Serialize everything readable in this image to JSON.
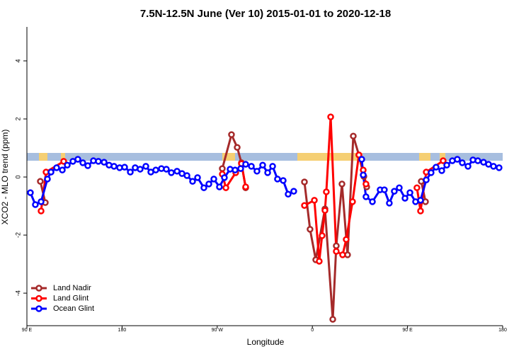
{
  "chart_data": {
    "type": "line",
    "title": "7.5N-12.5N June (Ver 10)   2015-01-01 to 2020-12-18",
    "x_label": "Longitude",
    "y_label": "XCO2 - MLO trend (ppm)",
    "xlim": [
      90,
      540
    ],
    "ylim": [
      -5.12,
      5.17
    ],
    "xticks": [
      {
        "value": 90,
        "label": "90 E"
      },
      180,
      {
        "value": 270,
        "label": "90 W"
      },
      {
        "value": 360,
        "label": "0"
      },
      {
        "value": 450,
        "label": "90 E"
      },
      {
        "value": 540,
        "label": "180"
      }
    ],
    "yticks": [
      -4,
      -2,
      0,
      2,
      4
    ],
    "legend": "bottom-left",
    "series": [
      {
        "name": "Land Nadir",
        "color": "#a52a2a",
        "x": [
          102.7,
          107.4,
          null,
          274.8,
          283.5,
          288.9,
          292.9,
          296.9,
          null,
          352.5,
          357.8,
          363.2,
          371.9,
          379.3,
          382.6,
          388.0,
          393.3,
          398.7,
          404.0,
          408.7,
          411.4,
          null,
          463.0,
          467.0
        ],
        "values": [
          -0.15,
          -0.88,
          null,
          0.29,
          1.46,
          1.02,
          0.49,
          -0.37,
          null,
          -0.17,
          -1.8,
          -2.85,
          -1.1,
          -4.9,
          -2.37,
          -0.24,
          -2.68,
          1.41,
          0.76,
          0.02,
          -0.34,
          null,
          -0.15,
          -0.85
        ]
      },
      {
        "name": "Land Glint",
        "color": "#ff0000",
        "x": [
          103.4,
          108.1,
          124.8,
          null,
          274.8,
          278.2,
          287.5,
          292.9,
          296.9,
          null,
          352.5,
          361.9,
          366.5,
          369.2,
          371.9,
          373.2,
          377.3,
          382.6,
          388.6,
          392.0,
          398.0,
          404.0,
          408.1,
          410.7,
          null,
          458.9,
          462.3,
          467.7,
          483.7
        ],
        "values": [
          -1.17,
          0.17,
          0.54,
          null,
          0.1,
          -0.37,
          0.15,
          0.46,
          -0.34,
          null,
          -0.98,
          -0.8,
          -2.9,
          -2.02,
          -1.15,
          -0.51,
          2.07,
          -2.56,
          -2.68,
          -2.15,
          -0.85,
          0.76,
          0.24,
          -0.24,
          null,
          -0.37,
          -1.17,
          0.17,
          0.56
        ]
      },
      {
        "name": "Ocean Glint",
        "color": "#0000ff",
        "x": [
          93.3,
          98.0,
          103.4,
          109.4,
          112.8,
          118.1,
          123.5,
          128.2,
          133.5,
          138.2,
          142.9,
          147.6,
          152.9,
          157.6,
          163.0,
          167.7,
          172.4,
          177.7,
          182.4,
          187.8,
          192.4,
          197.1,
          202.5,
          207.2,
          211.9,
          217.2,
          221.9,
          226.6,
          232.0,
          236.7,
          241.4,
          246.7,
          251.4,
          257.4,
          262.1,
          266.8,
          272.1,
          276.8,
          282.2,
          286.9,
          292.2,
          296.9,
          302.3,
          307.6,
          313.0,
          317.7,
          322.4,
          327.0,
          332.4,
          337.1,
          342.4,
          null,
          406.7,
          408.1,
          410.7,
          416.8,
          424.1,
          428.1,
          432.8,
          437.5,
          442.2,
          447.6,
          452.3,
          457.6,
          462.3,
          467.7,
          472.3,
          477.0,
          482.4,
          487.1,
          492.4,
          497.1,
          501.8,
          507.2,
          511.9,
          516.5,
          521.9,
          526.6,
          531.3,
          536.6
        ],
        "values": [
          -0.54,
          -0.95,
          -0.85,
          -0.07,
          0.17,
          0.32,
          0.24,
          0.41,
          0.54,
          0.61,
          0.49,
          0.39,
          0.56,
          0.54,
          0.51,
          0.41,
          0.37,
          0.32,
          0.34,
          0.17,
          0.32,
          0.27,
          0.37,
          0.17,
          0.24,
          0.29,
          0.27,
          0.15,
          0.2,
          0.12,
          0.05,
          -0.15,
          -0.02,
          -0.37,
          -0.24,
          -0.07,
          -0.34,
          -0.02,
          0.27,
          0.24,
          0.29,
          0.44,
          0.37,
          0.2,
          0.41,
          0.15,
          0.37,
          -0.07,
          -0.12,
          -0.59,
          -0.49,
          null,
          0.61,
          0.07,
          -0.68,
          -0.85,
          -0.44,
          -0.44,
          -0.9,
          -0.49,
          -0.37,
          -0.73,
          -0.54,
          -0.85,
          -0.8,
          -0.1,
          0.15,
          0.34,
          0.22,
          0.41,
          0.56,
          0.61,
          0.49,
          0.37,
          0.59,
          0.56,
          0.51,
          0.44,
          0.37,
          0.32
        ]
      }
    ]
  }
}
